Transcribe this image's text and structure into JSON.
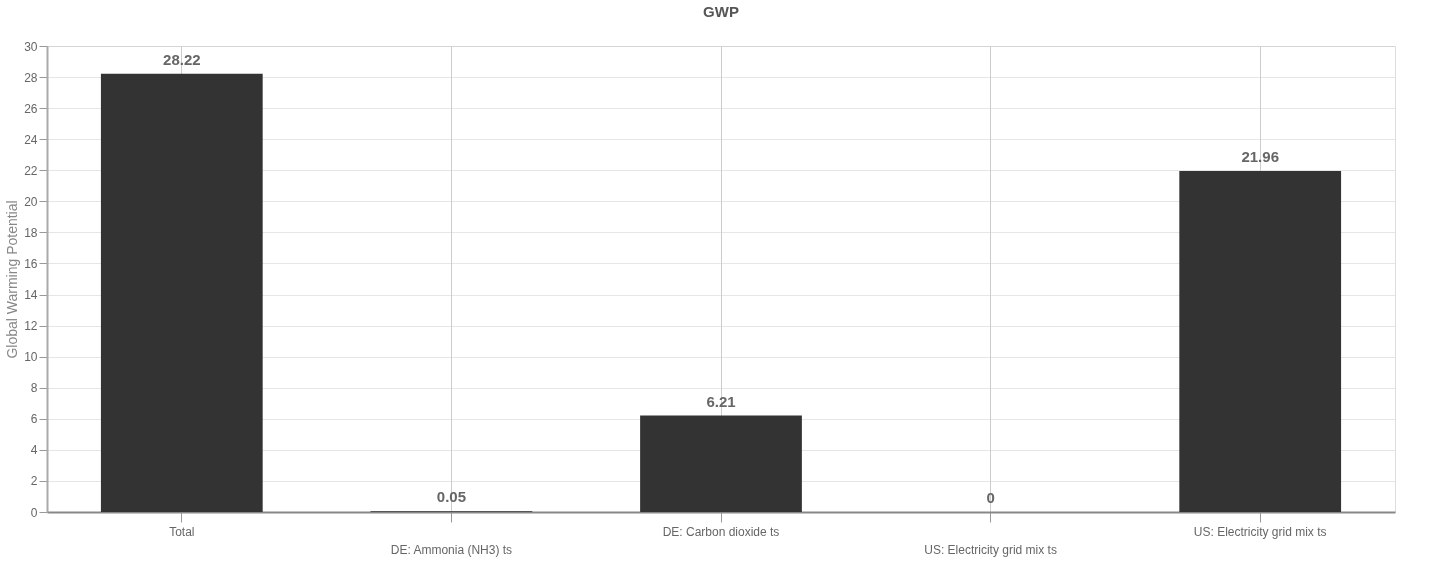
{
  "chart_data": {
    "type": "bar",
    "title": "GWP",
    "ylabel": "Global Warming Potential",
    "categories": [
      "Total",
      "DE: Ammonia (NH3) ts",
      "DE: Carbon dioxide ts",
      "US: Electricity grid mix ts",
      "US: Electricity grid mix ts"
    ],
    "values": [
      28.22,
      0.05,
      6.21,
      0,
      21.96
    ],
    "color": "#333333",
    "ylim": [
      0,
      30
    ],
    "yticks": [
      0,
      2,
      4,
      6,
      8,
      10,
      12,
      14,
      16,
      18,
      20,
      22,
      24,
      26,
      28,
      30
    ],
    "grid": true,
    "data_labels": true
  }
}
